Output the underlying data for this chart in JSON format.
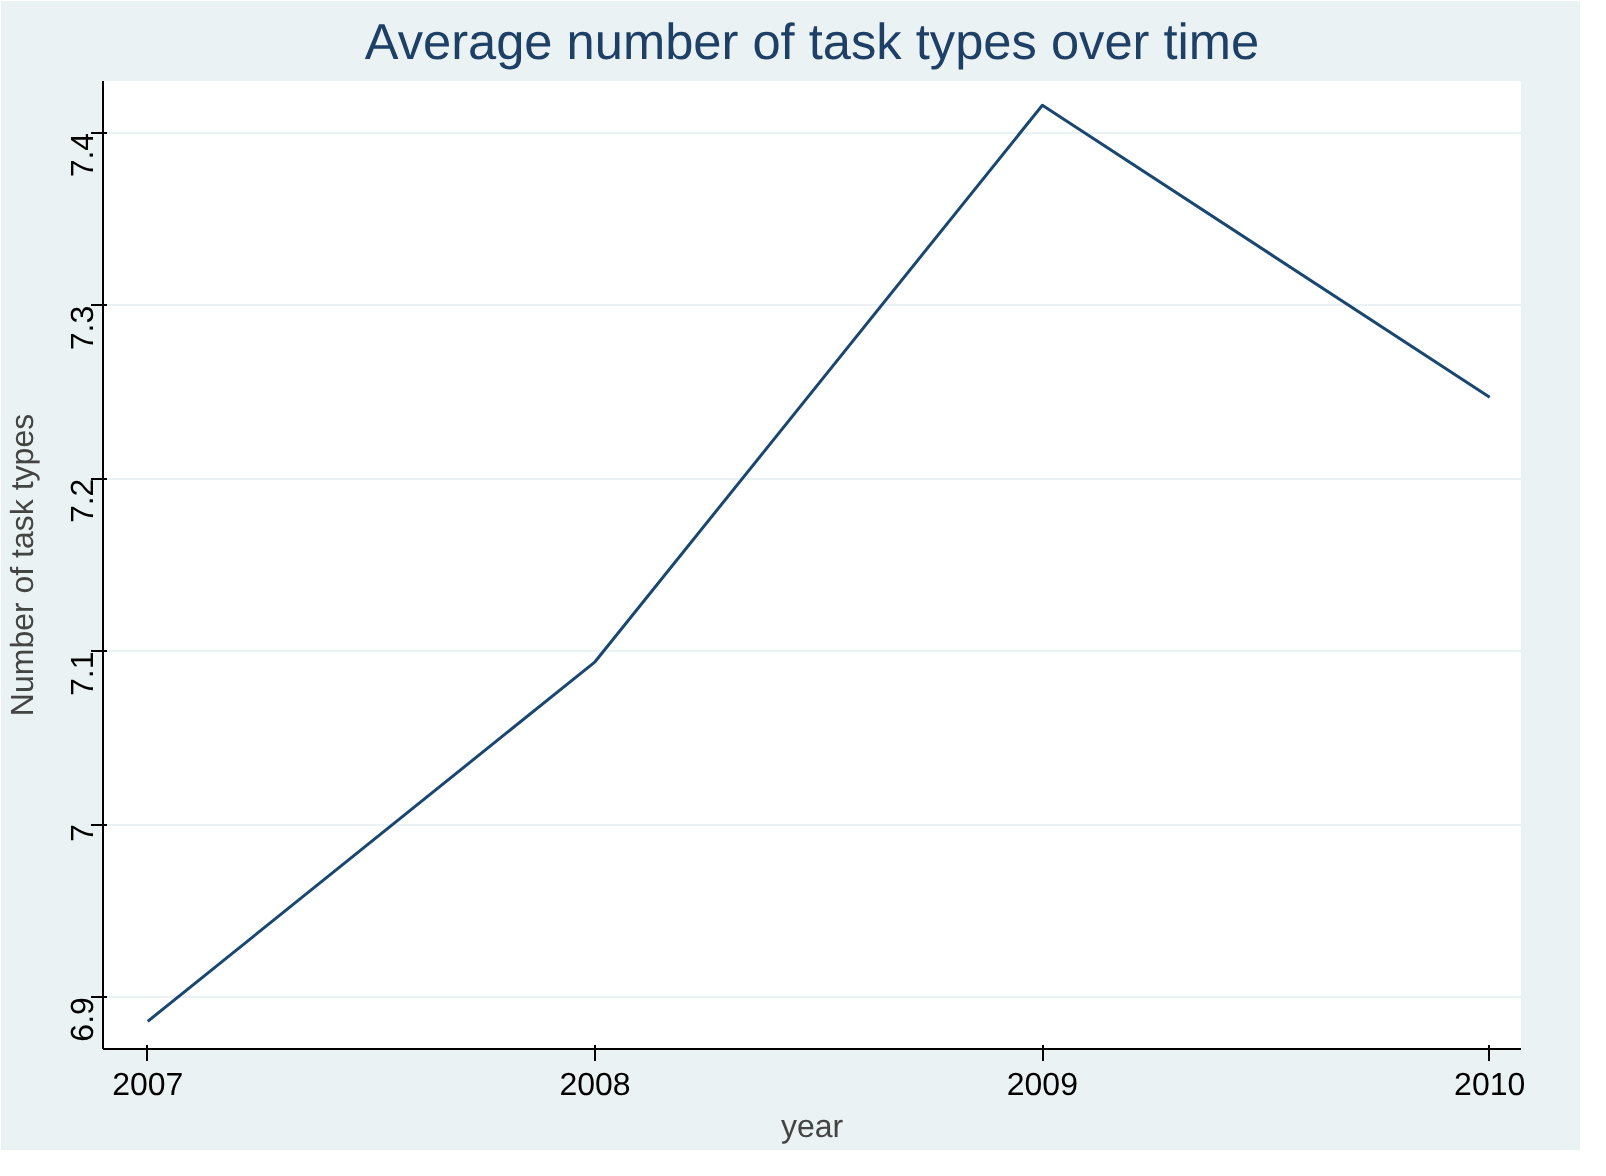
{
  "chart_data": {
    "type": "line",
    "title": "Average number of task types over time",
    "xlabel": "year",
    "ylabel": "Number of task types",
    "x": [
      2007,
      2008,
      2009,
      2010
    ],
    "series": [
      {
        "color": "#1a476f",
        "values": [
          6.886,
          7.094,
          7.416,
          7.247
        ]
      }
    ],
    "xlim": [
      2006.9,
      2010.07
    ],
    "ylim": [
      6.87,
      7.43
    ],
    "xticks": [
      2007,
      2008,
      2009,
      2010
    ],
    "yticks": [
      6.9,
      {
        "value": 7.0,
        "label": "7"
      },
      7.1,
      7.2,
      7.3,
      7.4
    ],
    "grid": "y",
    "marker": "none",
    "line_style": "solid"
  }
}
